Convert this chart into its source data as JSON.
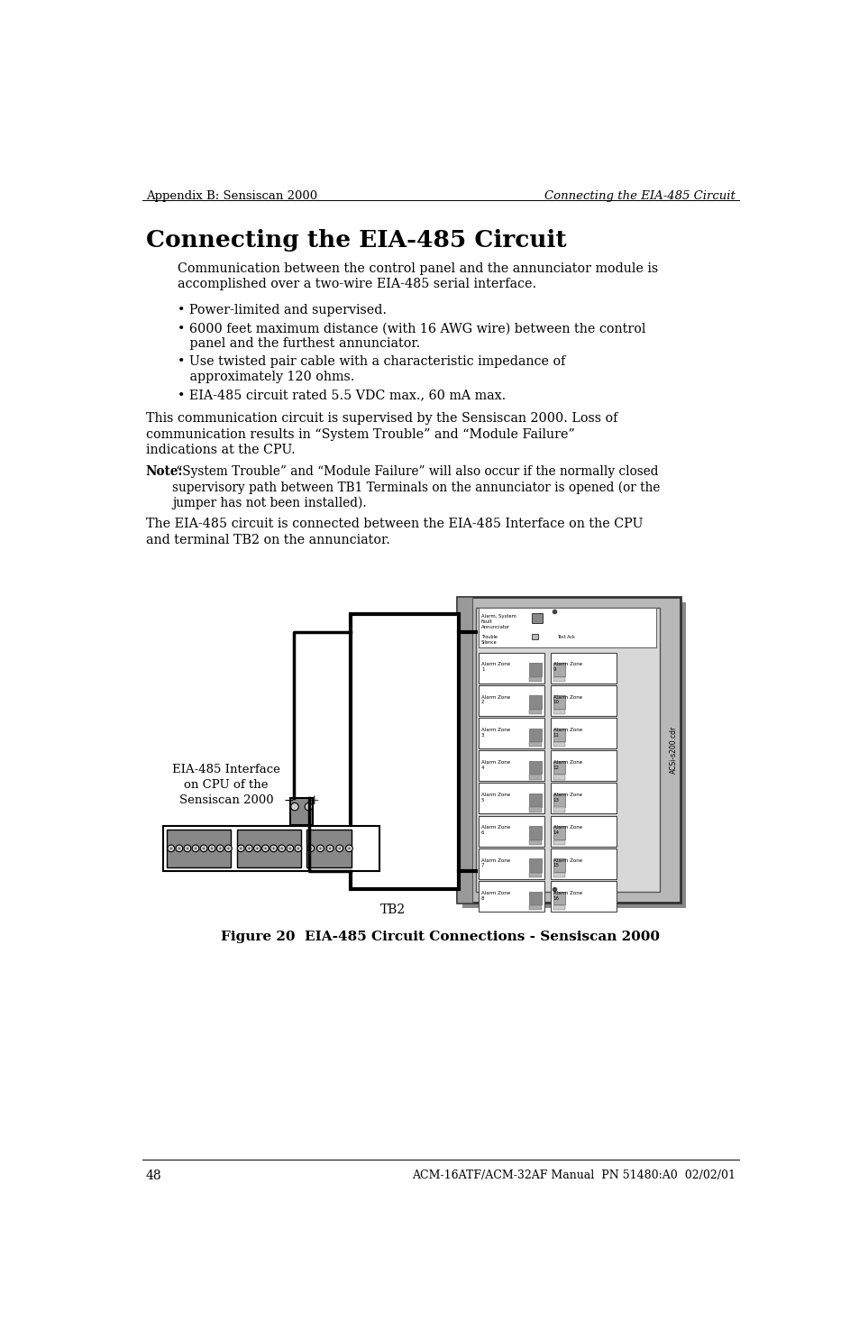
{
  "page_title_left": "Appendix B: Sensiscan 2000",
  "page_title_right": "Connecting the EIA-485 Circuit",
  "section_title": "Connecting the EIA-485 Circuit",
  "para1": "Communication between the control panel and the annunciator module is\naccomplished over a two-wire EIA-485 serial interface.",
  "bullet1": "• Power-limited and supervised.",
  "bullet2": "• 6000 feet maximum distance (with 16 AWG wire) between the control\n   panel and the furthest annunciator.",
  "bullet3": "• Use twisted pair cable with a characteristic impedance of\n   approximately 120 ohms.",
  "bullet4": "• EIA-485 circuit rated 5.5 VDC max., 60 mA max.",
  "para2": "This communication circuit is supervised by the Sensiscan 2000. Loss of\ncommunication results in “System Trouble” and “Module Failure”\nindications at the CPU.",
  "note_bold": "Note:",
  "note_rest": " “System Trouble” and “Module Failure” will also occur if the normally closed\nsupervisory path between TB1 Terminals on the annunciator is opened (or the\njumper has not been installed).",
  "para3": "The EIA-485 circuit is connected between the EIA-485 Interface on the CPU\nand terminal TB2 on the annunciator.",
  "label_eia": "EIA-485 Interface\non CPU of the\nSensiscan 2000",
  "label_tb2": "TB2",
  "label_minus": "−",
  "label_plus": "+",
  "label_spine": "ACSi-s200.cdr",
  "figure_caption": "Figure 20  EIA-485 Circuit Connections - Sensiscan 2000",
  "page_number": "48",
  "footer_right": "ACM-16ATF/ACM-32AF Manual  PN 51480:A0  02/02/01",
  "bg_color": "#ffffff"
}
